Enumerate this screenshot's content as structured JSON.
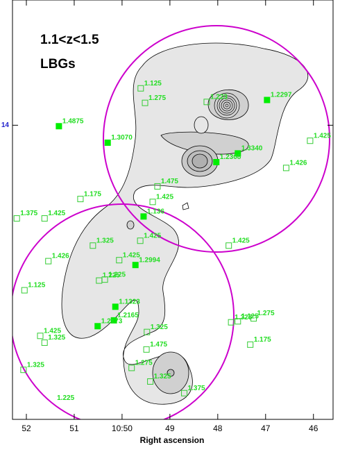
{
  "chart_data": {
    "type": "scatter",
    "title": "1.1<z<1.5",
    "subtitle": "LBGs",
    "xlabel": "Right ascension",
    "xlim": [
      52.29,
      45.59
    ],
    "ylim": [
      10.97,
      15.29
    ],
    "xticks": [
      52,
      51,
      {
        "value": 50,
        "label": "10:50"
      },
      49,
      48,
      47,
      46
    ],
    "yticks": [
      14
    ],
    "series": [
      {
        "color": "#00ee00",
        "filled": true,
        "x": [
          51.32,
          50.3,
          46.97,
          47.58,
          48.03,
          49.55,
          49.72,
          50.14,
          50.17,
          50.51
        ],
        "y": [
          13.99,
          13.82,
          14.26,
          13.71,
          13.62,
          13.06,
          12.56,
          12.13,
          11.99,
          11.93
        ],
        "labels": [
          "1.4875",
          "1.3070",
          "1.2297",
          "1.3340",
          "1.2308",
          "1.136",
          "1.2994",
          "1.1323",
          "1.2165",
          "1.2173"
        ]
      },
      {
        "color": "#33cc33",
        "filled": false,
        "x": [
          49.61,
          49.52,
          48.23,
          46.07,
          46.57,
          49.26,
          50.87,
          49.36,
          52.2,
          51.62,
          50.61,
          49.62,
          47.77,
          51.54,
          50.06,
          50.48,
          50.36,
          52.04,
          49.48,
          47.72,
          47.58,
          47.25,
          51.71,
          51.62,
          49.49,
          47.32,
          49.8,
          49.41,
          52.06,
          48.7
        ],
        "y": [
          14.38,
          14.23,
          14.24,
          13.84,
          13.56,
          13.37,
          13.24,
          13.21,
          13.04,
          13.04,
          12.76,
          12.81,
          12.76,
          12.6,
          12.61,
          12.4,
          12.41,
          12.3,
          11.87,
          11.97,
          11.98,
          12.01,
          11.83,
          11.76,
          11.69,
          11.74,
          11.5,
          11.36,
          11.48,
          11.24
        ],
        "labels": [
          "1.125",
          "1.275",
          "1.223",
          "1.425",
          "1.426",
          "1.475",
          "1.175",
          "1.425",
          "1.375",
          "1.425",
          "1.325",
          "1.425",
          "1.425",
          "1.426",
          "1.425",
          "1.225",
          "1.225",
          "1.125",
          "1.325",
          "1.325",
          "1.125",
          "1.275",
          "1.425",
          "1.325",
          "1.475",
          "1.175",
          "1.275",
          "1.325",
          "1.325",
          "1.375"
        ]
      }
    ],
    "annotations": [
      {
        "text": "1.225",
        "x": 51.36,
        "y": 11.19
      }
    ]
  }
}
